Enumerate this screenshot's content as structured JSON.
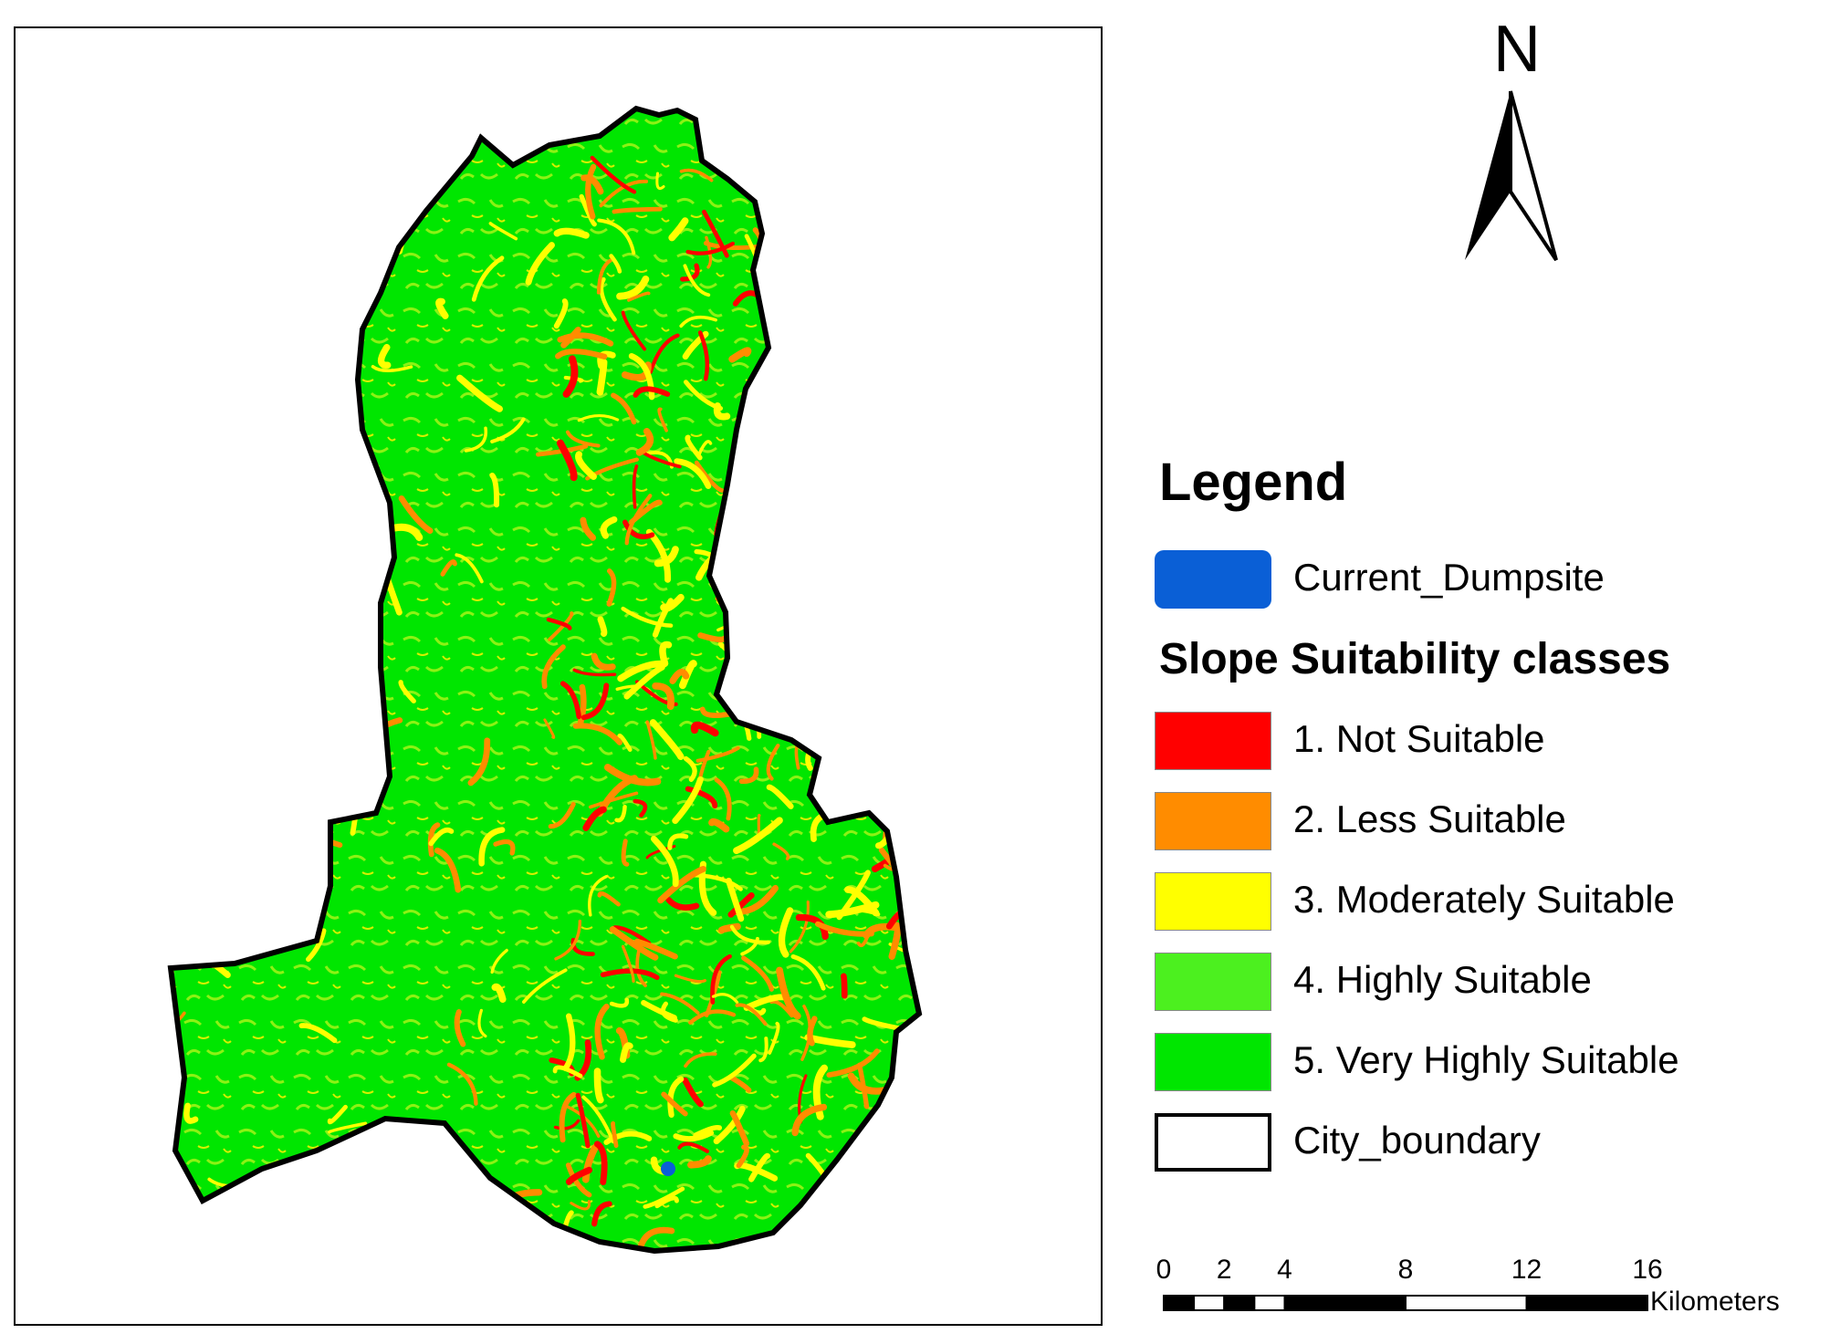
{
  "north_arrow": {
    "letter": "N",
    "icon": "north-arrow-icon"
  },
  "legend": {
    "title": "Legend",
    "dumpsite": {
      "label": "Current_Dumpsite",
      "color": "#0a5fd6"
    },
    "subtitle": "Slope Suitability classes",
    "classes": [
      {
        "label": "1. Not Suitable",
        "color": "#ff0000"
      },
      {
        "label": "2. Less Suitable",
        "color": "#ff8c00"
      },
      {
        "label": "3. Moderately Suitable",
        "color": "#ffff00"
      },
      {
        "label": "4. Highly Suitable",
        "color": "#4cf01f"
      },
      {
        "label": "5. Very Highly Suitable",
        "color": "#00e600"
      }
    ],
    "boundary": {
      "label": "City_boundary",
      "color": "#ffffff"
    }
  },
  "scale_bar": {
    "ticks": [
      "0",
      "2",
      "4",
      "8",
      "12",
      "16"
    ],
    "unit": "Kilometers"
  }
}
